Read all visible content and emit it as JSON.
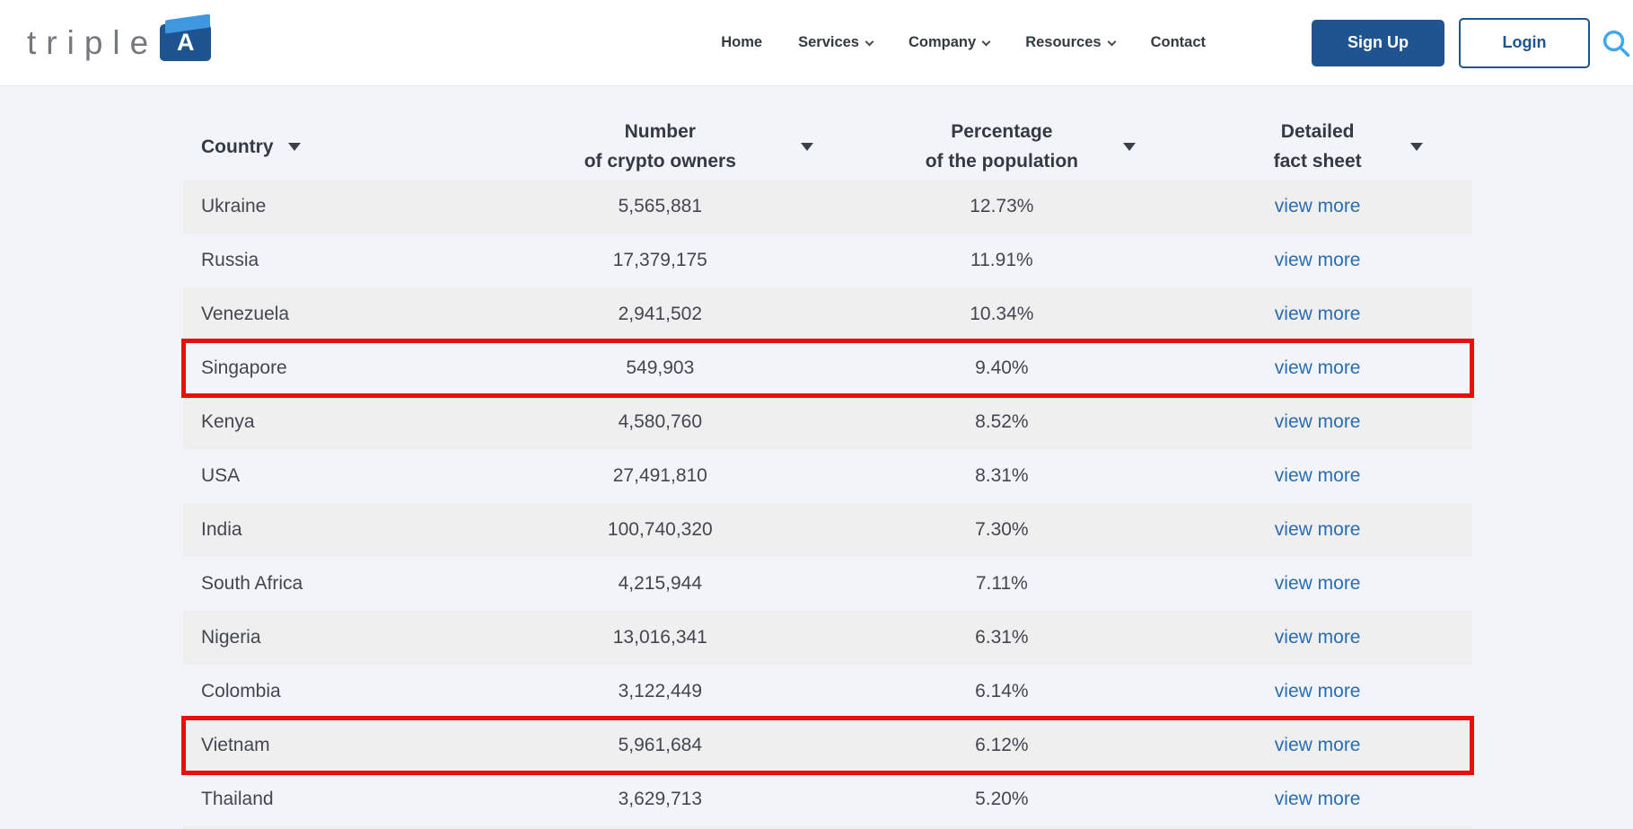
{
  "brand": {
    "wordmark": "triple",
    "logo_letter": "A"
  },
  "nav": {
    "items": [
      {
        "label": "Home",
        "has_dropdown": false
      },
      {
        "label": "Services",
        "has_dropdown": true
      },
      {
        "label": "Company",
        "has_dropdown": true
      },
      {
        "label": "Resources",
        "has_dropdown": true
      },
      {
        "label": "Contact",
        "has_dropdown": false
      }
    ]
  },
  "auth": {
    "signup_label": "Sign Up",
    "login_label": "Login"
  },
  "icons": {
    "search": "magnifier",
    "nav_dropdown": "chevron-down",
    "column_sort": "triangle-down"
  },
  "colors": {
    "accent": "#1e5490",
    "link": "#2a6db0",
    "search-blue": "#3da6ef",
    "logo-flap": "#3f97e0",
    "highlight-red": "#e8100c",
    "row-gray": "#efefef",
    "page-bg": "#f2f4f9",
    "header-text": "#343a42",
    "cell-text": "#42474f"
  },
  "table": {
    "columns": [
      {
        "id": "country",
        "label_lines": [
          "Country"
        ],
        "sortable": true
      },
      {
        "id": "owners",
        "label_lines": [
          "Number",
          "of crypto owners"
        ],
        "sortable": true
      },
      {
        "id": "percentage",
        "label_lines": [
          "Percentage",
          "of the population"
        ],
        "sortable": true
      },
      {
        "id": "factsheet",
        "label_lines": [
          "Detailed",
          "fact sheet"
        ],
        "sortable": true
      }
    ],
    "link_label": "view more",
    "rows": [
      {
        "country": "Ukraine",
        "owners": "5,565,881",
        "percentage": "12.73%",
        "highlighted": false
      },
      {
        "country": "Russia",
        "owners": "17,379,175",
        "percentage": "11.91%",
        "highlighted": false
      },
      {
        "country": "Venezuela",
        "owners": "2,941,502",
        "percentage": "10.34%",
        "highlighted": false
      },
      {
        "country": "Singapore",
        "owners": "549,903",
        "percentage": "9.40%",
        "highlighted": true
      },
      {
        "country": "Kenya",
        "owners": "4,580,760",
        "percentage": "8.52%",
        "highlighted": false
      },
      {
        "country": "USA",
        "owners": "27,491,810",
        "percentage": "8.31%",
        "highlighted": false
      },
      {
        "country": "India",
        "owners": "100,740,320",
        "percentage": "7.30%",
        "highlighted": false
      },
      {
        "country": "South Africa",
        "owners": "4,215,944",
        "percentage": "7.11%",
        "highlighted": false
      },
      {
        "country": "Nigeria",
        "owners": "13,016,341",
        "percentage": "6.31%",
        "highlighted": false
      },
      {
        "country": "Colombia",
        "owners": "3,122,449",
        "percentage": "6.14%",
        "highlighted": false
      },
      {
        "country": "Vietnam",
        "owners": "5,961,684",
        "percentage": "6.12%",
        "highlighted": true
      },
      {
        "country": "Thailand",
        "owners": "3,629,713",
        "percentage": "5.20%",
        "highlighted": false
      }
    ]
  }
}
